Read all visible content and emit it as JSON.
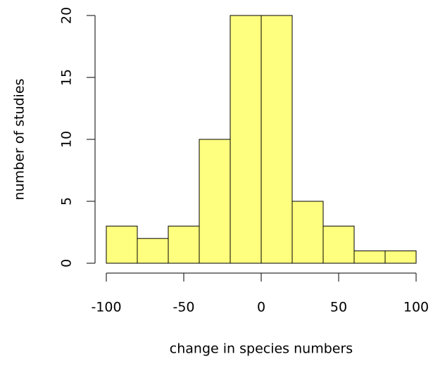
{
  "chart_data": {
    "type": "histogram",
    "xlabel": "change in species numbers",
    "ylabel": "number of studies",
    "bins": [
      -100,
      -80,
      -60,
      -40,
      -20,
      0,
      20,
      40,
      60,
      80,
      100
    ],
    "counts": [
      3,
      2,
      3,
      10,
      20,
      20,
      5,
      3,
      1,
      1
    ],
    "color": "#ffff7f",
    "xlim": [
      -100,
      100
    ],
    "xticks": [
      -100,
      -50,
      0,
      50,
      100
    ],
    "ylim": [
      0,
      20
    ],
    "yticks": [
      0,
      5,
      10,
      15,
      20
    ]
  }
}
